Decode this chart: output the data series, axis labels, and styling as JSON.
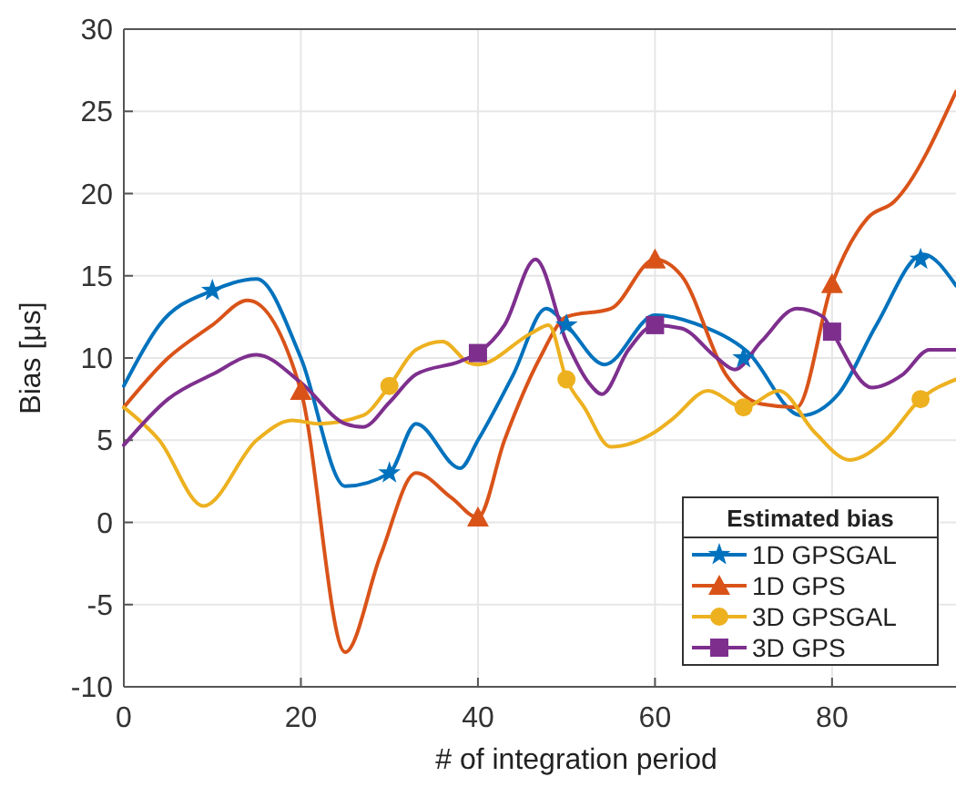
{
  "chart_data": {
    "type": "line",
    "xlabel": "# of integration period",
    "ylabel": "Bias [μs]",
    "legend_title": "Estimated bias",
    "legend": "bottom right",
    "grid": true,
    "line_style": "solid",
    "xlim": [
      0,
      94
    ],
    "xticks": [
      0,
      20,
      40,
      60,
      80
    ],
    "ylim": [
      -10,
      30
    ],
    "yticks": [
      -10,
      -5,
      0,
      5,
      10,
      15,
      20,
      25,
      30
    ],
    "series": [
      {
        "name": "1D GPSGAL",
        "color": "#0072bd",
        "x": [
          0,
          4,
          10,
          15,
          20,
          25,
          30,
          33,
          38,
          40,
          44,
          47.7,
          50,
          54.3,
          60,
          65,
          70.4,
          76.5,
          80.7,
          85,
          90.3,
          94
        ],
        "values": [
          8.3,
          12,
          14.1,
          14.8,
          10,
          2.2,
          3,
          6,
          3.3,
          5,
          9,
          13,
          12,
          9.6,
          12.6,
          12,
          10.4,
          6.5,
          7.8,
          12,
          16.3,
          14.4
        ]
      },
      {
        "name": "1D GPS",
        "color": "#d95319",
        "x": [
          0,
          5,
          10,
          14,
          20,
          25,
          29,
          33,
          37,
          40,
          43,
          47,
          50,
          55,
          60,
          63,
          68,
          72,
          76,
          80,
          84,
          87,
          94
        ],
        "values": [
          7,
          10,
          12,
          13.5,
          8,
          -7.9,
          -2,
          3,
          1.5,
          0.3,
          5,
          10,
          12.5,
          13,
          16,
          15,
          9,
          7.2,
          7,
          14.5,
          18.5,
          19.5,
          26.2
        ]
      },
      {
        "name": "3D GPSGAL",
        "color": "#edb120",
        "x": [
          0,
          4,
          9,
          15,
          19,
          22,
          27,
          30,
          33,
          36,
          39,
          40,
          46,
          48,
          50,
          52,
          55,
          60,
          62,
          66,
          70,
          74,
          78,
          82,
          86,
          90,
          94
        ],
        "values": [
          7,
          5,
          1,
          5,
          6.2,
          6,
          6.5,
          8.3,
          10.5,
          11,
          9.7,
          9.6,
          11.5,
          12,
          8.7,
          7,
          4.6,
          5.5,
          6.3,
          8,
          7,
          8,
          5.5,
          3.8,
          5,
          7.5,
          8.7
        ]
      },
      {
        "name": "3D GPS",
        "color": "#7e2f8e",
        "x": [
          0,
          5,
          10,
          15,
          20,
          25,
          27,
          30,
          33,
          38,
          40,
          43,
          46.5,
          50,
          52.5,
          54,
          57,
          60,
          63,
          67,
          69,
          72,
          76,
          79,
          80,
          84.5,
          88,
          91,
          94
        ],
        "values": [
          4.7,
          7.5,
          9,
          10.2,
          8.5,
          6,
          5.8,
          7.3,
          9,
          9.8,
          10.3,
          12,
          16,
          11,
          8.5,
          7.8,
          10.5,
          12,
          11.8,
          10,
          9.3,
          11,
          13,
          12.5,
          11.6,
          8.2,
          9,
          10.5,
          10.5
        ]
      },
      {
        "type": "scatter",
        "color": "#0072bd",
        "marker": "star",
        "x": [
          10,
          30,
          50,
          70,
          90
        ],
        "values": [
          14.1,
          3,
          12,
          10,
          16
        ]
      },
      {
        "type": "scatter",
        "color": "#d95319",
        "marker": "triangle",
        "x": [
          20,
          40,
          60,
          80
        ],
        "values": [
          8,
          0.3,
          16,
          14.5
        ]
      },
      {
        "type": "scatter",
        "color": "#edb120",
        "marker": "circle",
        "x": [
          30,
          50,
          70,
          90
        ],
        "values": [
          8.3,
          8.7,
          7,
          7.5
        ]
      },
      {
        "type": "scatter",
        "color": "#7e2f8e",
        "marker": "square",
        "x": [
          40,
          60,
          80
        ],
        "values": [
          10.3,
          12,
          11.6
        ]
      }
    ]
  }
}
